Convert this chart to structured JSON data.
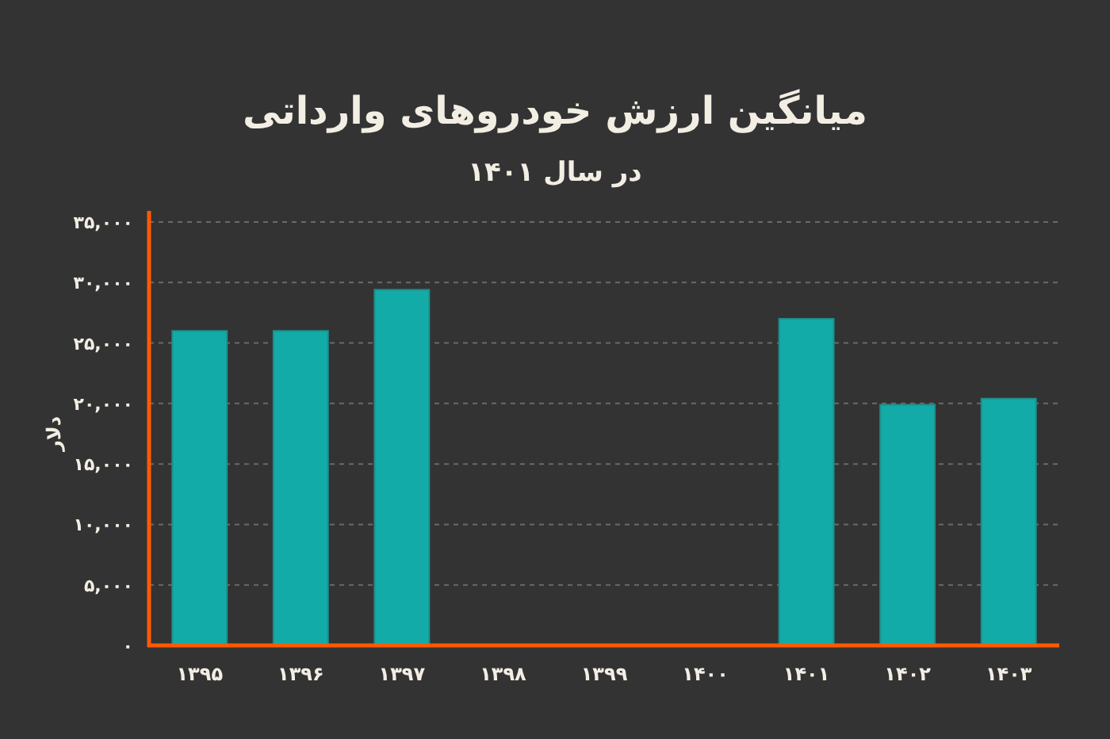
{
  "chart_data": {
    "type": "bar",
    "title": "میانگین ارزش خودروهای وارداتی",
    "subtitle": "در سال ۱۴۰۱",
    "ylabel": "دلار",
    "categories": [
      "۱۳۹۵",
      "۱۳۹۶",
      "۱۳۹۷",
      "۱۳۹۸",
      "۱۳۹۹",
      "۱۴۰۰",
      "۱۴۰۱",
      "۱۴۰۲",
      "۱۴۰۳"
    ],
    "values": [
      26000,
      26000,
      29400,
      null,
      null,
      null,
      27000,
      19900,
      20400
    ],
    "color": "#12aba8",
    "ylim": [
      0,
      35000
    ],
    "yticks": [
      {
        "value": 0,
        "label": "۰"
      },
      {
        "value": 5000,
        "label": "۵,۰۰۰"
      },
      {
        "value": 10000,
        "label": "۱۰,۰۰۰"
      },
      {
        "value": 15000,
        "label": "۱۵,۰۰۰"
      },
      {
        "value": 20000,
        "label": "۲۰,۰۰۰"
      },
      {
        "value": 25000,
        "label": "۲۵,۰۰۰"
      },
      {
        "value": 30000,
        "label": "۳۰,۰۰۰"
      },
      {
        "value": 35000,
        "label": "۳۵,۰۰۰"
      }
    ],
    "grid": "y"
  }
}
